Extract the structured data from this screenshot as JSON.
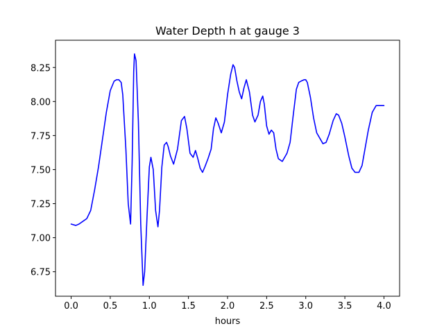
{
  "chart_data": {
    "type": "line",
    "title": "Water Depth h at gauge 3",
    "xlabel": "hours",
    "ylabel": "",
    "xlim": [
      -0.2,
      4.2
    ],
    "ylim": [
      6.57,
      8.45
    ],
    "grid": false,
    "legend": "none",
    "xticks": [
      0.0,
      0.5,
      1.0,
      1.5,
      2.0,
      2.5,
      3.0,
      3.5,
      4.0
    ],
    "xtick_labels": [
      "0.0",
      "0.5",
      "1.0",
      "1.5",
      "2.0",
      "2.5",
      "3.0",
      "3.5",
      "4.0"
    ],
    "yticks": [
      6.75,
      7.0,
      7.25,
      7.5,
      7.75,
      8.0,
      8.25
    ],
    "ytick_labels": [
      "6.75",
      "7.00",
      "7.25",
      "7.50",
      "7.75",
      "8.00",
      "8.25"
    ],
    "series": [
      {
        "color": "#0000ff",
        "x": [
          0.0,
          0.06,
          0.1,
          0.15,
          0.2,
          0.25,
          0.3,
          0.35,
          0.4,
          0.45,
          0.5,
          0.55,
          0.58,
          0.61,
          0.64,
          0.66,
          0.7,
          0.73,
          0.76,
          0.78,
          0.8,
          0.81,
          0.83,
          0.86,
          0.89,
          0.92,
          0.94,
          0.97,
          1.0,
          1.02,
          1.05,
          1.08,
          1.11,
          1.13,
          1.16,
          1.19,
          1.22,
          1.24,
          1.27,
          1.31,
          1.36,
          1.41,
          1.45,
          1.48,
          1.52,
          1.56,
          1.59,
          1.62,
          1.65,
          1.68,
          1.71,
          1.75,
          1.79,
          1.82,
          1.85,
          1.88,
          1.92,
          1.96,
          2.0,
          2.04,
          2.07,
          2.09,
          2.12,
          2.15,
          2.18,
          2.21,
          2.24,
          2.28,
          2.32,
          2.35,
          2.39,
          2.42,
          2.45,
          2.47,
          2.5,
          2.53,
          2.56,
          2.59,
          2.62,
          2.65,
          2.7,
          2.76,
          2.8,
          2.84,
          2.88,
          2.91,
          2.94,
          2.98,
          3.0,
          3.02,
          3.06,
          3.1,
          3.14,
          3.18,
          3.22,
          3.26,
          3.3,
          3.35,
          3.39,
          3.42,
          3.46,
          3.5,
          3.55,
          3.59,
          3.63,
          3.68,
          3.72,
          3.76,
          3.8,
          3.85,
          3.9,
          3.94,
          3.97,
          4.0
        ],
        "y": [
          7.1,
          7.09,
          7.1,
          7.12,
          7.14,
          7.2,
          7.35,
          7.52,
          7.72,
          7.92,
          8.08,
          8.15,
          8.16,
          8.16,
          8.14,
          8.05,
          7.65,
          7.25,
          7.1,
          7.55,
          8.22,
          8.35,
          8.3,
          7.85,
          7.1,
          6.65,
          6.75,
          7.15,
          7.52,
          7.59,
          7.5,
          7.2,
          7.08,
          7.2,
          7.52,
          7.68,
          7.7,
          7.67,
          7.6,
          7.54,
          7.65,
          7.86,
          7.89,
          7.8,
          7.62,
          7.59,
          7.64,
          7.58,
          7.51,
          7.48,
          7.52,
          7.58,
          7.65,
          7.8,
          7.88,
          7.84,
          7.77,
          7.85,
          8.05,
          8.2,
          8.27,
          8.25,
          8.15,
          8.07,
          8.02,
          8.1,
          8.16,
          8.07,
          7.9,
          7.85,
          7.9,
          8.0,
          8.04,
          7.98,
          7.82,
          7.76,
          7.79,
          7.77,
          7.65,
          7.58,
          7.56,
          7.62,
          7.7,
          7.9,
          8.09,
          8.14,
          8.15,
          8.16,
          8.16,
          8.14,
          8.03,
          7.88,
          7.77,
          7.73,
          7.69,
          7.7,
          7.76,
          7.86,
          7.91,
          7.9,
          7.84,
          7.74,
          7.6,
          7.51,
          7.48,
          7.48,
          7.53,
          7.66,
          7.79,
          7.92,
          7.97,
          7.97,
          7.97,
          7.97
        ]
      }
    ]
  }
}
